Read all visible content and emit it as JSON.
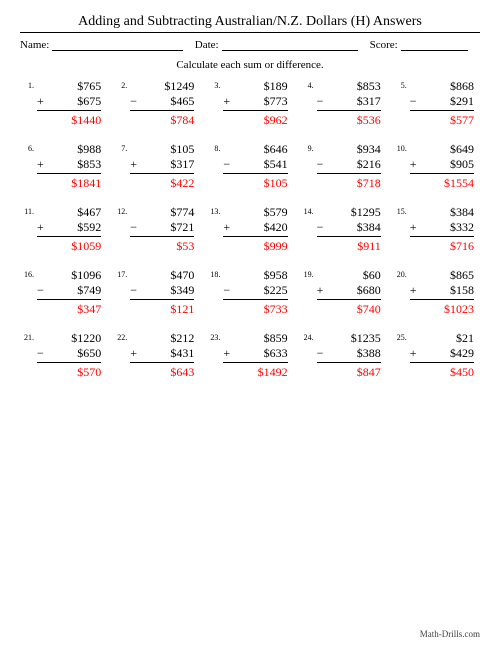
{
  "title": "Adding and Subtracting Australian/N.Z. Dollars (H) Answers",
  "meta": {
    "name_label": "Name:",
    "date_label": "Date:",
    "score_label": "Score:"
  },
  "instruction": "Calculate each sum or difference.",
  "currency": "$",
  "answer_color": "#ff0000",
  "problems": [
    {
      "n": 1,
      "a": 765,
      "op": "+",
      "b": 675,
      "ans": 1440
    },
    {
      "n": 2,
      "a": 1249,
      "op": "−",
      "b": 465,
      "ans": 784
    },
    {
      "n": 3,
      "a": 189,
      "op": "+",
      "b": 773,
      "ans": 962
    },
    {
      "n": 4,
      "a": 853,
      "op": "−",
      "b": 317,
      "ans": 536
    },
    {
      "n": 5,
      "a": 868,
      "op": "−",
      "b": 291,
      "ans": 577
    },
    {
      "n": 6,
      "a": 988,
      "op": "+",
      "b": 853,
      "ans": 1841
    },
    {
      "n": 7,
      "a": 105,
      "op": "+",
      "b": 317,
      "ans": 422
    },
    {
      "n": 8,
      "a": 646,
      "op": "−",
      "b": 541,
      "ans": 105
    },
    {
      "n": 9,
      "a": 934,
      "op": "−",
      "b": 216,
      "ans": 718
    },
    {
      "n": 10,
      "a": 649,
      "op": "+",
      "b": 905,
      "ans": 1554
    },
    {
      "n": 11,
      "a": 467,
      "op": "+",
      "b": 592,
      "ans": 1059
    },
    {
      "n": 12,
      "a": 774,
      "op": "−",
      "b": 721,
      "ans": 53
    },
    {
      "n": 13,
      "a": 579,
      "op": "+",
      "b": 420,
      "ans": 999
    },
    {
      "n": 14,
      "a": 1295,
      "op": "−",
      "b": 384,
      "ans": 911
    },
    {
      "n": 15,
      "a": 384,
      "op": "+",
      "b": 332,
      "ans": 716
    },
    {
      "n": 16,
      "a": 1096,
      "op": "−",
      "b": 749,
      "ans": 347
    },
    {
      "n": 17,
      "a": 470,
      "op": "−",
      "b": 349,
      "ans": 121
    },
    {
      "n": 18,
      "a": 958,
      "op": "−",
      "b": 225,
      "ans": 733
    },
    {
      "n": 19,
      "a": 60,
      "op": "+",
      "b": 680,
      "ans": 740
    },
    {
      "n": 20,
      "a": 865,
      "op": "+",
      "b": 158,
      "ans": 1023
    },
    {
      "n": 21,
      "a": 1220,
      "op": "−",
      "b": 650,
      "ans": 570
    },
    {
      "n": 22,
      "a": 212,
      "op": "+",
      "b": 431,
      "ans": 643
    },
    {
      "n": 23,
      "a": 859,
      "op": "+",
      "b": 633,
      "ans": 1492
    },
    {
      "n": 24,
      "a": 1235,
      "op": "−",
      "b": 388,
      "ans": 847
    },
    {
      "n": 25,
      "a": 21,
      "op": "+",
      "b": 429,
      "ans": 450
    }
  ],
  "footer": "Math-Drills.com"
}
